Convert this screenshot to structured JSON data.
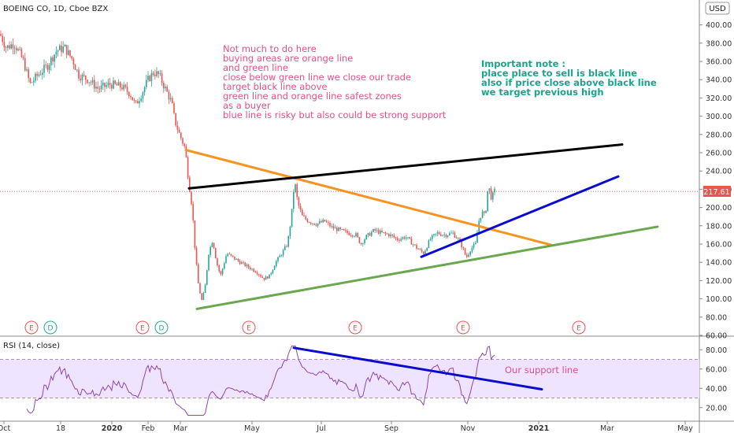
{
  "header": {
    "symbol_line": "BOEING CO, 1D, Cboe BZX",
    "currency": "USD"
  },
  "colors": {
    "up": "#26a69a",
    "down": "#ef5350",
    "orange": "#f7931e",
    "black": "#000000",
    "blue": "#0b0bcf",
    "green": "#6aa84f",
    "rsi_line": "#8e44ad",
    "rsi_band": "#efe4ff",
    "note_pink": "#e0508a",
    "note_teal": "#17a589"
  },
  "notes": {
    "main": [
      "Not much to do here",
      "buying areas are orange line",
      "and green line",
      "close below green line we close our trade",
      "target black line above",
      "green line and orange line safest zones",
      "as a buyer",
      "blue line is risky but also could be strong support"
    ],
    "important": [
      "Important note :",
      "place place to sell is black line",
      "also if price close above black line",
      "we target previous high"
    ],
    "rsi": "Our support line"
  },
  "markers": [
    {
      "label": "E",
      "x_label": "Oct-late",
      "kind": "earnings"
    },
    {
      "label": "D",
      "x_label": "Nov",
      "kind": "dividend"
    },
    {
      "label": "E",
      "x_label": "Jan-late",
      "kind": "earnings"
    },
    {
      "label": "D",
      "x_label": "Feb",
      "kind": "dividend"
    },
    {
      "label": "E",
      "x_label": "Apr-late",
      "kind": "earnings"
    },
    {
      "label": "E",
      "x_label": "Jul-late",
      "kind": "earnings"
    },
    {
      "label": "E",
      "x_label": "Oct-late",
      "kind": "earnings"
    },
    {
      "label": "E",
      "x_label": "Jan-late",
      "kind": "earnings"
    }
  ],
  "chart_data": [
    {
      "type": "candlestick",
      "title": "BOEING CO, 1D, Cboe BZX",
      "ylim": [
        60,
        410
      ],
      "y_ticks": [
        "60.00",
        "80.00",
        "100.00",
        "120.00",
        "140.00",
        "160.00",
        "180.00",
        "200.00",
        "220.00",
        "240.00",
        "260.00",
        "280.00",
        "300.00",
        "320.00",
        "340.00",
        "360.00",
        "380.00",
        "400.00"
      ],
      "x_ticks": [
        "Oct",
        "18",
        "2020",
        "Feb",
        "Mar",
        "May",
        "Jul",
        "Sep",
        "Nov",
        "2021",
        "Mar",
        "May"
      ],
      "last_price": "217.61",
      "price_path": [
        [
          0,
          390
        ],
        [
          8,
          375
        ],
        [
          18,
          380
        ],
        [
          30,
          360
        ],
        [
          38,
          335
        ],
        [
          48,
          345
        ],
        [
          60,
          355
        ],
        [
          72,
          372
        ],
        [
          82,
          375
        ],
        [
          92,
          362
        ],
        [
          100,
          345
        ],
        [
          112,
          340
        ],
        [
          125,
          330
        ],
        [
          140,
          335
        ],
        [
          155,
          332
        ],
        [
          165,
          325
        ],
        [
          172,
          312
        ],
        [
          180,
          325
        ],
        [
          188,
          340
        ],
        [
          195,
          348
        ],
        [
          202,
          345
        ],
        [
          210,
          330
        ],
        [
          218,
          315
        ],
        [
          222,
          295
        ],
        [
          228,
          280
        ],
        [
          235,
          265
        ],
        [
          240,
          225
        ],
        [
          244,
          200
        ],
        [
          248,
          150
        ],
        [
          252,
          115
        ],
        [
          256,
          98
        ],
        [
          260,
          110
        ],
        [
          265,
          150
        ],
        [
          270,
          165
        ],
        [
          275,
          140
        ],
        [
          280,
          125
        ],
        [
          288,
          150
        ],
        [
          296,
          145
        ],
        [
          305,
          140
        ],
        [
          315,
          135
        ],
        [
          325,
          130
        ],
        [
          335,
          122
        ],
        [
          342,
          125
        ],
        [
          350,
          140
        ],
        [
          358,
          150
        ],
        [
          365,
          160
        ],
        [
          370,
          190
        ],
        [
          374,
          230
        ],
        [
          378,
          205
        ],
        [
          384,
          190
        ],
        [
          392,
          185
        ],
        [
          402,
          182
        ],
        [
          412,
          185
        ],
        [
          422,
          178
        ],
        [
          432,
          175
        ],
        [
          442,
          172
        ],
        [
          452,
          170
        ],
        [
          458,
          160
        ],
        [
          465,
          168
        ],
        [
          475,
          175
        ],
        [
          485,
          172
        ],
        [
          495,
          170
        ],
        [
          505,
          165
        ],
        [
          515,
          168
        ],
        [
          522,
          162
        ],
        [
          530,
          155
        ],
        [
          538,
          150
        ],
        [
          546,
          165
        ],
        [
          555,
          172
        ],
        [
          565,
          170
        ],
        [
          575,
          172
        ],
        [
          582,
          165
        ],
        [
          588,
          155
        ],
        [
          592,
          145
        ],
        [
          598,
          155
        ],
        [
          604,
          160
        ],
        [
          608,
          185
        ],
        [
          612,
          195
        ],
        [
          616,
          190
        ],
        [
          620,
          225
        ],
        [
          624,
          210
        ],
        [
          628,
          218
        ],
        [
          630,
          217.61
        ]
      ],
      "overlay_lines": [
        {
          "name": "orange",
          "from": [
            236,
            263
          ],
          "to": [
            700,
            159
          ]
        },
        {
          "name": "black",
          "from": [
            240,
            221
          ],
          "to": [
            790,
            269
          ]
        },
        {
          "name": "blue",
          "from": [
            535,
            146
          ],
          "to": [
            785,
            234
          ]
        },
        {
          "name": "green",
          "from": [
            250,
            89
          ],
          "to": [
            835,
            179
          ]
        }
      ]
    },
    {
      "type": "line",
      "title": "RSI (14, close)",
      "ylim": [
        10,
        90
      ],
      "y_ticks": [
        "20.00",
        "40.00",
        "60.00",
        "80.00"
      ],
      "bands": [
        30,
        70
      ],
      "overlay_lines": [
        {
          "name": "blue",
          "from": [
            373,
            82
          ],
          "to": [
            688,
            39
          ]
        }
      ]
    }
  ]
}
